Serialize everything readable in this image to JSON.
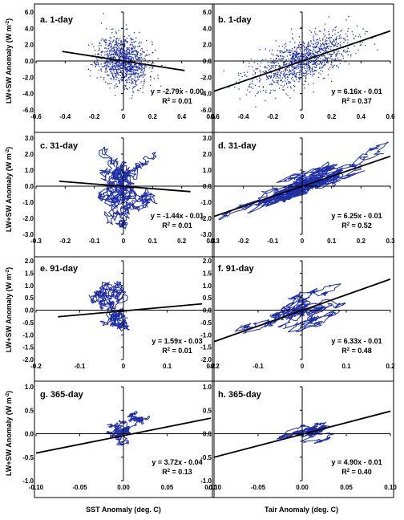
{
  "figure": {
    "ylabel_left": "LW+SW Anomaly (W m",
    "ylabel_sup": "-2",
    "ylabel_close": ")",
    "xlabel_left": "SST Anomaly (deg. C)",
    "xlabel_right": "Tair Anomaly (deg. C)",
    "colors": {
      "points": "#1f2fa8",
      "fit": "#000000",
      "axes": "#000000",
      "frame": "#000000"
    }
  },
  "chart_data": [
    {
      "type": "scatter",
      "title": "a. 1-day",
      "xlim": [
        -0.6,
        0.6
      ],
      "ylim": [
        -6.0,
        6.0
      ],
      "xticks": [
        "-0.6",
        "-0.4",
        "-0.2",
        "0",
        "0.2",
        "0.4",
        "0.6"
      ],
      "yticks": [
        "-6.0",
        "-4.0",
        "-2.0",
        "0.0",
        "2.0",
        "4.0",
        "6.0"
      ],
      "fit": {
        "slope": -2.79,
        "intercept": 0.0,
        "x_range": [
          -0.42,
          0.42
        ]
      },
      "equation": "y = -2.79x - 0.00",
      "r2_prefix": "R",
      "r2_value": " = 0.01",
      "cloud": {
        "n": 1100,
        "x_mean": 0.0,
        "x_sd": 0.085,
        "y_sd": 1.45,
        "slope": -2.79,
        "seed": 11
      },
      "grid": false,
      "legend": "none"
    },
    {
      "type": "scatter",
      "title": "b. 1-day",
      "xlim": [
        -0.6,
        0.6
      ],
      "ylim": [
        -6.0,
        6.0
      ],
      "xticks": [
        "-0.6",
        "-0.4",
        "-0.2",
        "0",
        "0.2",
        "0.4",
        "0.6"
      ],
      "yticks": [
        "-6.0",
        "-4.0",
        "-2.0",
        "0.0",
        "2.0",
        "4.0",
        "6.0"
      ],
      "fit": {
        "slope": 6.16,
        "intercept": -0.01,
        "x_range": [
          -0.6,
          0.6
        ]
      },
      "equation": "y = 6.16x - 0.01",
      "r2_prefix": "R",
      "r2_value": " = 0.37",
      "cloud": {
        "n": 1100,
        "x_mean": 0.0,
        "x_sd": 0.17,
        "y_sd": 1.35,
        "slope": 6.16,
        "seed": 23
      },
      "grid": false,
      "legend": "none"
    },
    {
      "type": "line",
      "title": "c. 31-day",
      "xlim": [
        -0.3,
        0.3
      ],
      "ylim": [
        -3.0,
        3.0
      ],
      "xticks": [
        "-0.3",
        "-0.2",
        "-0.1",
        "0",
        "0.1",
        "0.2",
        "0.3"
      ],
      "yticks": [
        "-3.0",
        "-2.0",
        "-1.0",
        "0.0",
        "1.0",
        "2.0",
        "3.0"
      ],
      "fit": {
        "slope": -1.44,
        "intercept": -0.01,
        "x_range": [
          -0.22,
          0.23
        ]
      },
      "equation": "y = -1.44x - 0.01",
      "r2_prefix": "R",
      "r2_value": " = 0.01",
      "walk": {
        "n": 1000,
        "x_sd": 0.045,
        "y_sd": 0.85,
        "slope": -1.44,
        "rho": 0.985,
        "seed": 37
      },
      "grid": false,
      "legend": "none"
    },
    {
      "type": "line",
      "title": "d. 31-day",
      "xlim": [
        -0.3,
        0.3
      ],
      "ylim": [
        -3.0,
        3.0
      ],
      "xticks": [
        "-0.3",
        "-0.2",
        "-0.1",
        "0",
        "0.1",
        "0.2",
        "0.3"
      ],
      "yticks": [
        "-3.0",
        "-2.0",
        "-1.0",
        "0.0",
        "1.0",
        "2.0",
        "3.0"
      ],
      "fit": {
        "slope": 6.25,
        "intercept": -0.01,
        "x_range": [
          -0.3,
          0.3
        ]
      },
      "equation": "y = 6.25x - 0.01",
      "r2_prefix": "R",
      "r2_value": " = 0.52",
      "walk": {
        "n": 1000,
        "x_sd": 0.1,
        "y_sd": 0.6,
        "slope": 6.25,
        "rho": 0.985,
        "seed": 41
      },
      "grid": false,
      "legend": "none"
    },
    {
      "type": "line",
      "title": "e. 91-day",
      "xlim": [
        -0.2,
        0.2
      ],
      "ylim": [
        -2.0,
        2.0
      ],
      "xticks": [
        "-0.2",
        "-0.1",
        "0",
        "0.1",
        "0.2"
      ],
      "yticks": [
        "-2.0",
        "-1.5",
        "-1.0",
        "-0.5",
        "0.0",
        "0.5",
        "1.0",
        "1.5",
        "2.0"
      ],
      "fit": {
        "slope": 1.59,
        "intercept": -0.03,
        "x_range": [
          -0.15,
          0.18
        ]
      },
      "equation": "y = 1.59x - 0.03",
      "r2_prefix": "R",
      "r2_value": " = 0.01",
      "walk": {
        "n": 700,
        "x_sd": 0.03,
        "y_sd": 0.55,
        "slope": 1.59,
        "rho": 0.99,
        "seed": 53
      },
      "grid": false,
      "legend": "none"
    },
    {
      "type": "line",
      "title": "f. 91-day",
      "xlim": [
        -0.2,
        0.2
      ],
      "ylim": [
        -2.0,
        2.0
      ],
      "xticks": [
        "-0.2",
        "-0.1",
        "0",
        "0.1",
        "0.2"
      ],
      "yticks": [
        "-2.0",
        "-1.5",
        "-1.0",
        "-0.5",
        "0.0",
        "0.5",
        "1.0",
        "1.5",
        "2.0"
      ],
      "fit": {
        "slope": 6.33,
        "intercept": -0.01,
        "x_range": [
          -0.2,
          0.2
        ]
      },
      "equation": "y = 6.33x - 0.01",
      "r2_prefix": "R",
      "r2_value": " = 0.48",
      "walk": {
        "n": 700,
        "x_sd": 0.055,
        "y_sd": 0.4,
        "slope": 6.33,
        "rho": 0.99,
        "seed": 61
      },
      "grid": false,
      "legend": "none"
    },
    {
      "type": "line",
      "title": "g. 365-day",
      "xlim": [
        -0.1,
        0.1
      ],
      "ylim": [
        -1.0,
        1.0
      ],
      "xticks": [
        "-0.10",
        "-0.05",
        "0.00",
        "0.05",
        "0.10"
      ],
      "yticks": [
        "-1.0",
        "-0.5",
        "0.0",
        "0.5",
        "1.0"
      ],
      "fit": {
        "slope": 3.72,
        "intercept": -0.04,
        "x_range": [
          -0.1,
          0.1
        ]
      },
      "equation": "y = 3.72x - 0.04",
      "r2_prefix": "R",
      "r2_value": " = 0.13",
      "walk": {
        "n": 500,
        "x_sd": 0.017,
        "y_sd": 0.18,
        "slope": 3.72,
        "rho": 0.992,
        "seed": 71
      },
      "grid": false,
      "legend": "none"
    },
    {
      "type": "line",
      "title": "h. 365-day",
      "xlim": [
        -0.1,
        0.1
      ],
      "ylim": [
        -1.0,
        1.0
      ],
      "xticks": [
        "-0.10",
        "-0.05",
        "0.00",
        "0.05",
        "0.10"
      ],
      "yticks": [
        "-1.0",
        "-0.5",
        "0.0",
        "0.5",
        "1.0"
      ],
      "fit": {
        "slope": 4.9,
        "intercept": -0.01,
        "x_range": [
          -0.1,
          0.1
        ]
      },
      "equation": "y = 4.90x - 0.01",
      "r2_prefix": "R",
      "r2_value": " = 0.40",
      "walk": {
        "n": 500,
        "x_sd": 0.025,
        "y_sd": 0.13,
        "slope": 4.9,
        "rho": 0.992,
        "seed": 83
      },
      "grid": false,
      "legend": "none"
    }
  ]
}
